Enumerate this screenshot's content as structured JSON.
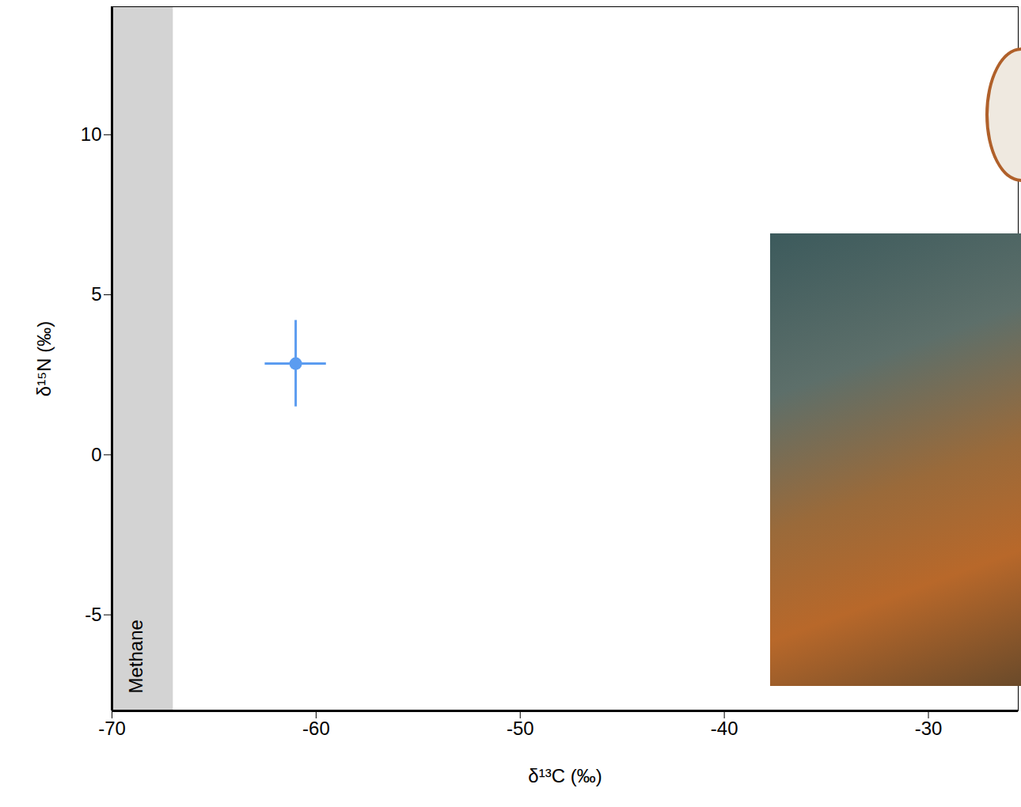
{
  "chart_data": {
    "type": "scatter",
    "x_label": "δ¹³C (‰)",
    "y_label": "δ¹⁵N (‰)",
    "x": [
      -61
    ],
    "values": [
      2.85
    ],
    "xerr": [
      1.5
    ],
    "yerr": [
      1.35
    ],
    "color": "#5b9cf0",
    "marker": "circle",
    "xlim": [
      -70,
      -25.6
    ],
    "ylim": [
      -8,
      14
    ],
    "xticks": [
      -70,
      -60,
      -50,
      -40,
      -30
    ],
    "yticks": [
      -5,
      0,
      5,
      10
    ],
    "grid": false,
    "bands": [
      {
        "label": "Methane",
        "xlim": [
          -70,
          -67
        ],
        "color": "#d3d3d3"
      }
    ]
  }
}
